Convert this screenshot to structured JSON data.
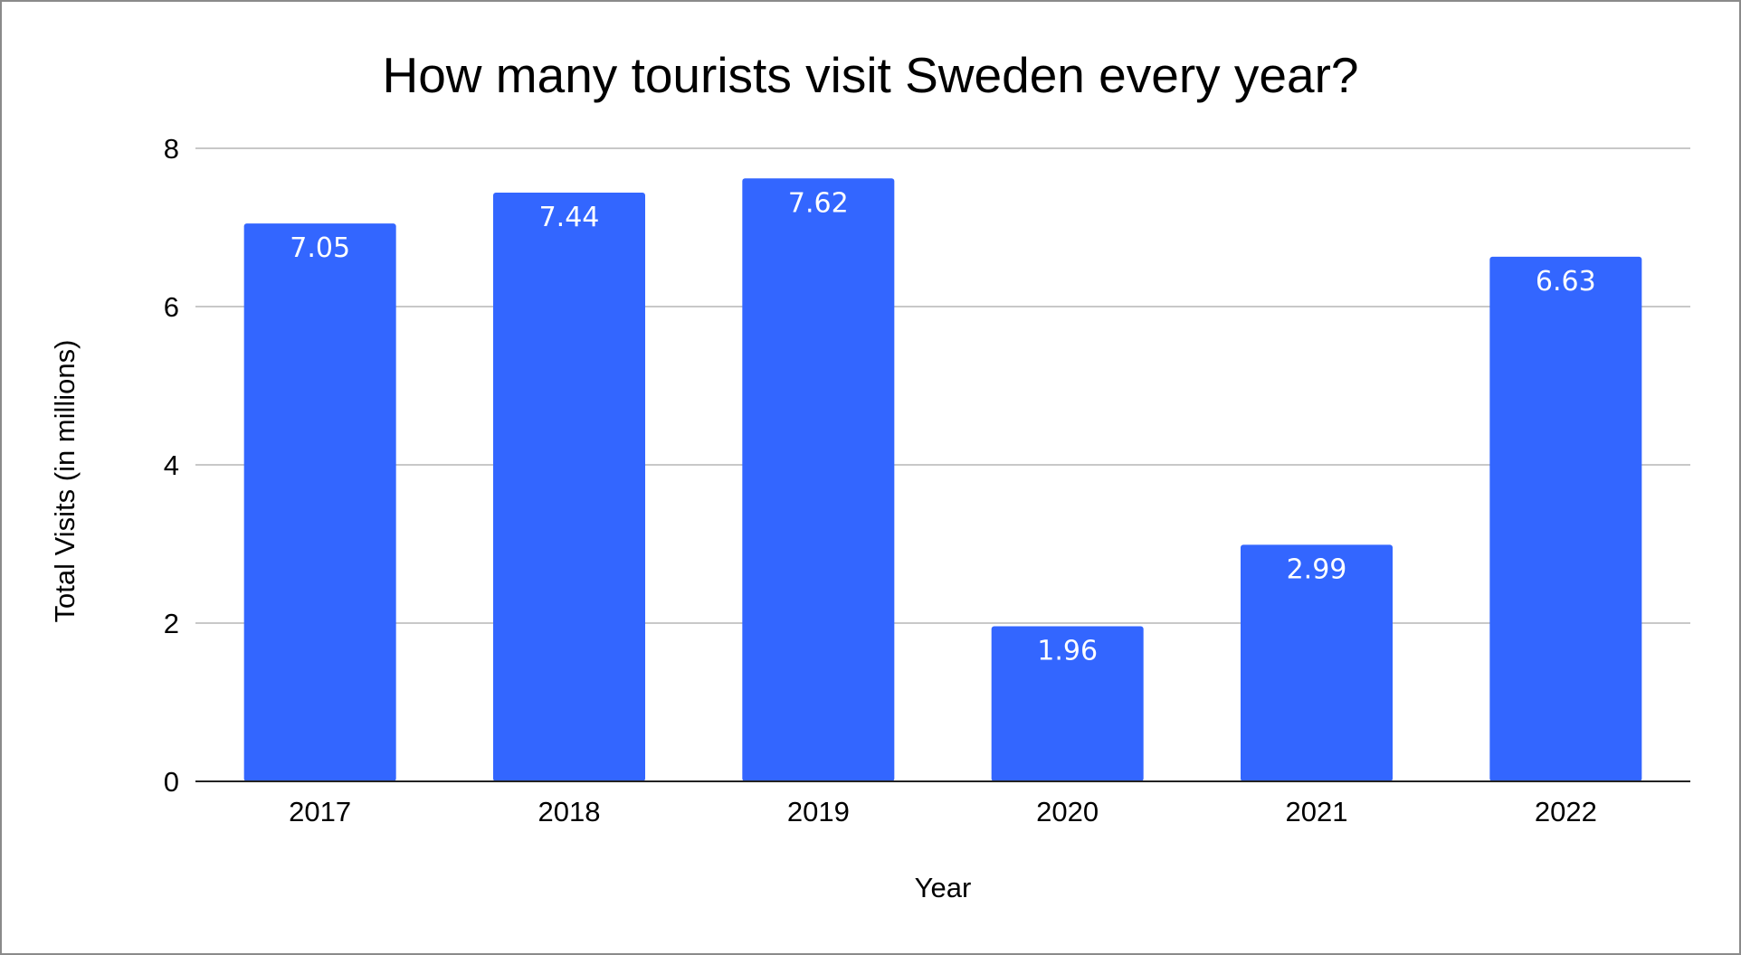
{
  "chart_data": {
    "type": "bar",
    "title": "How many tourists visit Sweden every year?",
    "xlabel": "Year",
    "ylabel": "Total Visits (in millions)",
    "categories": [
      "2017",
      "2018",
      "2019",
      "2020",
      "2021",
      "2022"
    ],
    "values": [
      7.05,
      7.44,
      7.62,
      1.96,
      2.99,
      6.63
    ],
    "value_labels": [
      "7.05",
      "7.44",
      "7.62",
      "1.96",
      "2.99",
      "6.63"
    ],
    "ylim": [
      0,
      8
    ],
    "yticks": [
      0,
      2,
      4,
      6,
      8
    ],
    "ytick_labels": [
      "0",
      "2",
      "4",
      "6",
      "8"
    ],
    "grid": true,
    "legend": "none",
    "colors": {
      "bar": "#3366ff"
    }
  }
}
